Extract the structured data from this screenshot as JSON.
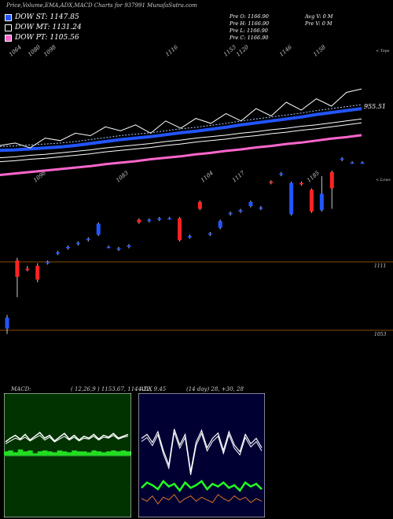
{
  "header": {
    "title": "Price,Volume,EMA,ADX,MACD Charts for 937991 MunafaSutra.com"
  },
  "legend": [
    {
      "label": "DOW ST: 1147.85",
      "color": "#2255ff"
    },
    {
      "label": "DOW MT: 1131.24",
      "color": "#ffffff"
    },
    {
      "label": "DOW PT: 1105.56",
      "color": "#ff66cc"
    }
  ],
  "ohlc": {
    "col1": [
      "Pre  O: 1166.90",
      "Pre  H: 1166.90",
      "Pre  L: 1166.90",
      "Pre  C: 1166.90"
    ],
    "col2": [
      "Avg V: 0  M",
      "Pre  V: 0  M"
    ]
  },
  "colors": {
    "up": "#2255ff",
    "down": "#ff2222",
    "short_ema": "#2255ff",
    "mid_ema": "#ffffff",
    "long_ema": "#ff66cc",
    "macd_bg": "#003300",
    "adx_bg": "#000033"
  },
  "chart_data": [
    {
      "type": "line",
      "name": "price-ema",
      "top_labels": [
        "1064",
        "1080",
        "1098",
        "1116",
        "1153",
        "1120",
        "1146",
        "1158"
      ],
      "bottom_labels": [
        "1098",
        "1083",
        "1104",
        "1117",
        "1185"
      ],
      "right_top_label": "< Tops",
      "right_bottom_label": "< Lows",
      "price_label": "955.51",
      "series": [
        {
          "name": "DOW ST",
          "values": [
            870,
            871,
            873,
            875,
            877,
            880,
            884,
            888,
            892,
            895,
            898,
            902,
            906,
            909,
            913,
            917,
            922,
            926,
            930,
            934,
            938,
            943,
            947,
            951,
            955
          ]
        },
        {
          "name": "DOW MT",
          "values": [
            855,
            857,
            860,
            862,
            865,
            868,
            871,
            875,
            878,
            881,
            884,
            888,
            891,
            895,
            898,
            901,
            905,
            908,
            912,
            915,
            919,
            922,
            926,
            930,
            934
          ]
        },
        {
          "name": "DOW PT",
          "values": [
            820,
            823,
            826,
            829,
            832,
            835,
            838,
            842,
            845,
            848,
            852,
            855,
            858,
            862,
            865,
            869,
            872,
            876,
            879,
            883,
            886,
            890,
            894,
            897,
            901
          ]
        },
        {
          "name": "Close",
          "values": [
            880,
            885,
            875,
            895,
            890,
            905,
            900,
            918,
            910,
            922,
            905,
            930,
            915,
            935,
            925,
            945,
            930,
            955,
            940,
            968,
            952,
            975,
            960,
            988,
            995
          ]
        }
      ]
    },
    {
      "type": "bar",
      "name": "candles",
      "right_labels": [
        "1111",
        "1053"
      ],
      "values": [
        {
          "o": 1062,
          "c": 1070,
          "h": 1072,
          "l": 1058
        },
        {
          "o": 1112,
          "c": 1100,
          "h": 1114,
          "l": 1085
        },
        {
          "o": 1106,
          "c": 1105,
          "h": 1108,
          "l": 1104
        },
        {
          "o": 1108,
          "c": 1098,
          "h": 1110,
          "l": 1096
        },
        {
          "o": 1110,
          "c": 1111,
          "h": 1112,
          "l": 1109
        },
        {
          "o": 1117,
          "c": 1118,
          "h": 1119,
          "l": 1116
        },
        {
          "o": 1121,
          "c": 1122,
          "h": 1123,
          "l": 1120
        },
        {
          "o": 1124,
          "c": 1125,
          "h": 1126,
          "l": 1123
        },
        {
          "o": 1127,
          "c": 1128,
          "h": 1129,
          "l": 1126
        },
        {
          "o": 1131,
          "c": 1139,
          "h": 1140,
          "l": 1130
        },
        {
          "o": 1122,
          "c": 1122,
          "h": 1123,
          "l": 1121
        },
        {
          "o": 1120,
          "c": 1121,
          "h": 1122,
          "l": 1119
        },
        {
          "o": 1122,
          "c": 1123,
          "h": 1124,
          "l": 1121
        },
        {
          "o": 1142,
          "c": 1140,
          "h": 1143,
          "l": 1139
        },
        {
          "o": 1141,
          "c": 1142,
          "h": 1143,
          "l": 1140
        },
        {
          "o": 1142,
          "c": 1143,
          "h": 1144,
          "l": 1141
        },
        {
          "o": 1143,
          "c": 1143,
          "h": 1144,
          "l": 1142
        },
        {
          "o": 1143,
          "c": 1127,
          "h": 1144,
          "l": 1126
        },
        {
          "o": 1129,
          "c": 1130,
          "h": 1131,
          "l": 1128
        },
        {
          "o": 1155,
          "c": 1150,
          "h": 1156,
          "l": 1149
        },
        {
          "o": 1131,
          "c": 1132,
          "h": 1133,
          "l": 1130
        },
        {
          "o": 1136,
          "c": 1141,
          "h": 1142,
          "l": 1135
        },
        {
          "o": 1146,
          "c": 1147,
          "h": 1148,
          "l": 1145
        },
        {
          "o": 1148,
          "c": 1149,
          "h": 1150,
          "l": 1147
        },
        {
          "o": 1152,
          "c": 1155,
          "h": 1156,
          "l": 1151
        },
        {
          "o": 1150,
          "c": 1151,
          "h": 1152,
          "l": 1149
        },
        {
          "o": 1170,
          "c": 1169,
          "h": 1171,
          "l": 1168
        },
        {
          "o": 1175,
          "c": 1176,
          "h": 1177,
          "l": 1174
        },
        {
          "o": 1146,
          "c": 1169,
          "h": 1170,
          "l": 1145
        },
        {
          "o": 1169,
          "c": 1168,
          "h": 1170,
          "l": 1167
        },
        {
          "o": 1164,
          "c": 1148,
          "h": 1165,
          "l": 1147
        },
        {
          "o": 1149,
          "c": 1161,
          "h": 1174,
          "l": 1148
        },
        {
          "o": 1177,
          "c": 1165,
          "h": 1178,
          "l": 1150
        },
        {
          "o": 1186,
          "c": 1187,
          "h": 1188,
          "l": 1185
        },
        {
          "o": 1184,
          "c": 1184,
          "h": 1185,
          "l": 1183
        },
        {
          "o": 1184,
          "c": 1184,
          "h": 1185,
          "l": 1183
        }
      ]
    },
    {
      "type": "line",
      "name": "macd",
      "label": "MACD:",
      "params": "( 12,26,9 ) 1153.67,  1144.22,  9.45",
      "series": [
        {
          "name": "MACD",
          "values": [
            40,
            44,
            47,
            43,
            48,
            42,
            46,
            50,
            44,
            47,
            41,
            45,
            49,
            43,
            47,
            42,
            46,
            44,
            48,
            43,
            47,
            45,
            49,
            44,
            46,
            48
          ]
        },
        {
          "name": "Signal",
          "values": [
            38,
            41,
            44,
            42,
            45,
            41,
            44,
            47,
            42,
            45,
            40,
            43,
            46,
            42,
            45,
            41,
            44,
            43,
            46,
            42,
            45,
            44,
            47,
            43,
            45,
            46
          ]
        },
        {
          "name": "Histogram",
          "values": [
            30,
            31,
            29,
            32,
            30,
            31,
            28,
            30,
            31,
            30,
            29,
            31,
            30,
            29,
            31,
            30,
            30,
            29,
            31,
            30,
            29,
            30,
            31,
            30,
            31,
            30
          ]
        }
      ]
    },
    {
      "type": "line",
      "name": "adx",
      "label": "ADX",
      "params": "(14 day) 28,  +30,  28",
      "series": [
        {
          "name": "ADX",
          "values": [
            25,
            22,
            28,
            20,
            34,
            45,
            18,
            30,
            22,
            50,
            28,
            19,
            32,
            25,
            21,
            34,
            20,
            30,
            35,
            22,
            29,
            25,
            32
          ]
        },
        {
          "name": "+DI",
          "values": [
            62,
            58,
            60,
            63,
            57,
            61,
            59,
            64,
            58,
            62,
            60,
            57,
            63,
            59,
            61,
            58,
            62,
            60,
            64,
            58,
            61,
            59,
            63
          ]
        },
        {
          "name": "-DI",
          "values": [
            70,
            72,
            68,
            74,
            69,
            71,
            67,
            73,
            70,
            68,
            72,
            69,
            71,
            73,
            67,
            70,
            72,
            68,
            71,
            69,
            73,
            70,
            72
          ]
        }
      ]
    }
  ]
}
